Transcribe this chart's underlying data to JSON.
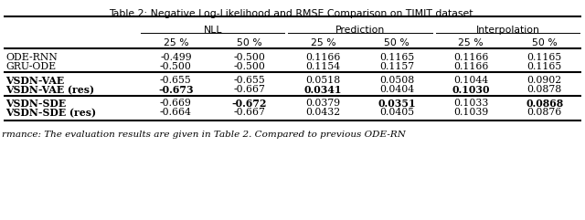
{
  "title": "Table 2: Negative Log-Likelihood and RMSE Comparison on TIMIT dataset.",
  "groups": [
    {
      "label": "NLL",
      "col_indices": [
        0,
        1
      ]
    },
    {
      "label": "Prediction",
      "col_indices": [
        2,
        3
      ]
    },
    {
      "label": "Interpolation",
      "col_indices": [
        4,
        5
      ]
    }
  ],
  "sub_headers": [
    "25 %",
    "50 %",
    "25 %",
    "50 %",
    "25 %",
    "50 %"
  ],
  "rows": [
    {
      "name": "ODE-RNN",
      "bold_name": false,
      "values": [
        "-0.499",
        "-0.500",
        "0.1166",
        "0.1165",
        "0.1166",
        "0.1165"
      ],
      "bold_vals": [
        false,
        false,
        false,
        false,
        false,
        false
      ],
      "group": 0
    },
    {
      "name": "GRU-ODE",
      "bold_name": false,
      "values": [
        "-0.500",
        "-0.500",
        "0.1154",
        "0.1157",
        "0.1166",
        "0.1165"
      ],
      "bold_vals": [
        false,
        false,
        false,
        false,
        false,
        false
      ],
      "group": 0
    },
    {
      "name": "VSDN-VAE",
      "bold_name": true,
      "values": [
        "-0.655",
        "-0.655",
        "0.0518",
        "0.0508",
        "0.1044",
        "0.0902"
      ],
      "bold_vals": [
        false,
        false,
        false,
        false,
        false,
        false
      ],
      "group": 1
    },
    {
      "name": "VSDN-VAE (res)",
      "bold_name": true,
      "values": [
        "-0.673",
        "-0.667",
        "0.0341",
        "0.0404",
        "0.1030",
        "0.0878"
      ],
      "bold_vals": [
        true,
        false,
        true,
        false,
        true,
        false
      ],
      "group": 1
    },
    {
      "name": "VSDN-SDE",
      "bold_name": true,
      "values": [
        "-0.669",
        "-0.672",
        "0.0379",
        "0.0351",
        "0.1033",
        "0.0868"
      ],
      "bold_vals": [
        false,
        true,
        false,
        true,
        false,
        true
      ],
      "group": 2
    },
    {
      "name": "VSDN-SDE (res)",
      "bold_name": true,
      "values": [
        "-0.664",
        "-0.667",
        "0.0432",
        "0.0405",
        "0.1039",
        "0.0876"
      ],
      "bold_vals": [
        false,
        false,
        false,
        false,
        false,
        false
      ],
      "group": 2
    }
  ],
  "footer_text": "rmance: The evaluation results are given in Table 2. Compared to previous ODE-RN",
  "bg_color": "#ffffff",
  "text_color": "#000000",
  "font_size": 7.8,
  "title_font_size": 7.8,
  "footer_font_size": 7.5
}
